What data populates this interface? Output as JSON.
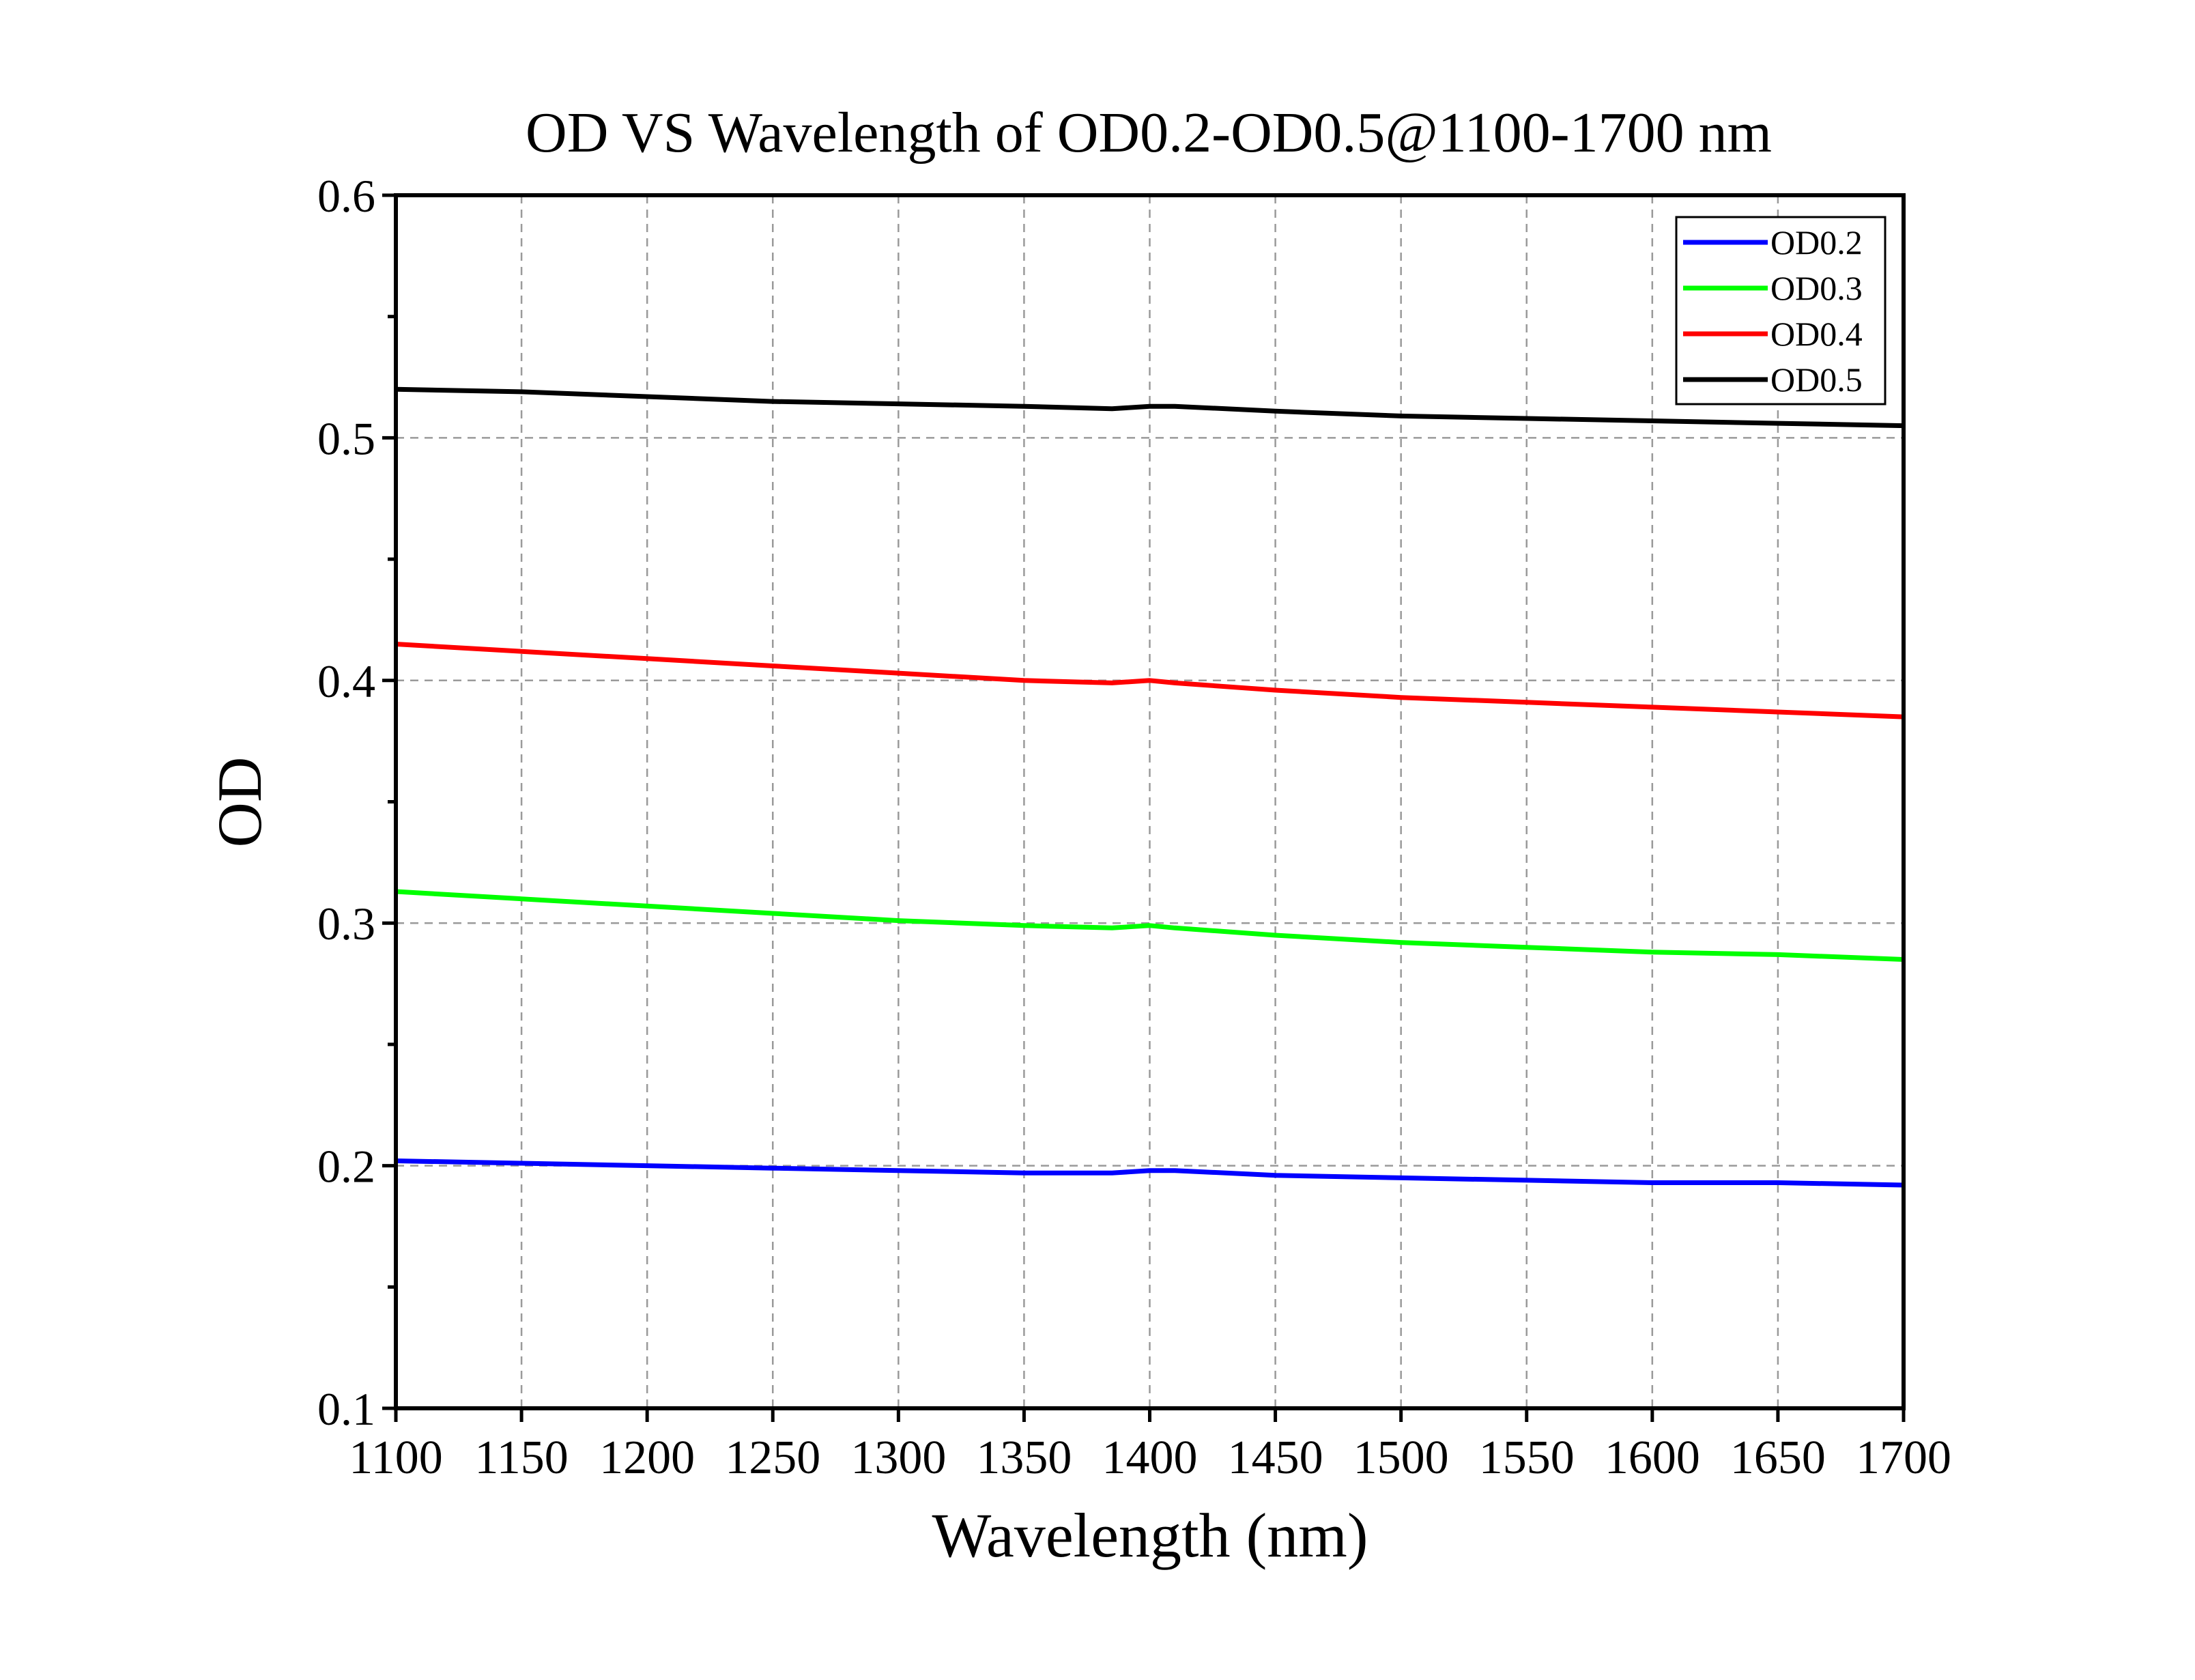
{
  "chart_data": {
    "type": "line",
    "title": "OD VS Wavelength of OD0.2-OD0.5@1100-1700 nm",
    "xlabel": "Wavelength (nm)",
    "ylabel": "OD",
    "xlim": [
      1100,
      1700
    ],
    "ylim": [
      0.1,
      0.6
    ],
    "xticks": [
      "1100",
      "1150",
      "1200",
      "1250",
      "1300",
      "1350",
      "1400",
      "1450",
      "1500",
      "1550",
      "1600",
      "1650",
      "1700"
    ],
    "yticks": [
      "0.1",
      "0.2",
      "0.3",
      "0.4",
      "0.5",
      "0.6"
    ],
    "grid": true,
    "legend_position": "top-right",
    "x": [
      1100,
      1150,
      1200,
      1250,
      1300,
      1350,
      1385,
      1400,
      1410,
      1450,
      1500,
      1550,
      1600,
      1650,
      1700
    ],
    "series": [
      {
        "name": "OD0.2",
        "color": "#0000ff",
        "values": [
          0.202,
          0.201,
          0.2,
          0.199,
          0.198,
          0.197,
          0.197,
          0.198,
          0.198,
          0.196,
          0.195,
          0.194,
          0.193,
          0.193,
          0.192
        ]
      },
      {
        "name": "OD0.3",
        "color": "#00ff00",
        "values": [
          0.313,
          0.31,
          0.307,
          0.304,
          0.301,
          0.299,
          0.298,
          0.299,
          0.298,
          0.295,
          0.292,
          0.29,
          0.288,
          0.287,
          0.285
        ]
      },
      {
        "name": "OD0.4",
        "color": "#ff0000",
        "values": [
          0.415,
          0.412,
          0.409,
          0.406,
          0.403,
          0.4,
          0.399,
          0.4,
          0.399,
          0.396,
          0.393,
          0.391,
          0.389,
          0.387,
          0.385
        ]
      },
      {
        "name": "OD0.5",
        "color": "#000000",
        "values": [
          0.52,
          0.519,
          0.517,
          0.515,
          0.514,
          0.513,
          0.512,
          0.513,
          0.513,
          0.511,
          0.509,
          0.508,
          0.507,
          0.506,
          0.505
        ]
      }
    ]
  }
}
